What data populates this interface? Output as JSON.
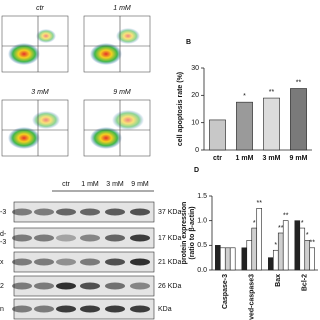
{
  "flow_cytometry": {
    "labels": [
      "ctr",
      "1 mM",
      "3 mM",
      "9 mM"
    ]
  },
  "western_blot": {
    "lanes": [
      "ctr",
      "1 mM",
      "3 mM",
      "9 mM"
    ],
    "rows": [
      {
        "label": [
          "-3"
        ],
        "size": "37 KDa"
      },
      {
        "label": [
          "d-",
          "-3"
        ],
        "size": "17 KDa"
      },
      {
        "label": [
          "x"
        ],
        "size": "21 KDa"
      },
      {
        "label": [
          "2"
        ],
        "size": "26 KDa"
      },
      {
        "label": [
          "n"
        ],
        "size": "KDa"
      }
    ]
  },
  "chart_data": [
    {
      "type": "bar",
      "panel": "B",
      "ylabel": "cell apoptosis rate (%)",
      "categories": [
        "ctr",
        "1 mM",
        "3 mM",
        "9 mM"
      ],
      "values": [
        11,
        17.5,
        19,
        22.5
      ],
      "colors": [
        "#c8c8c8",
        "#9a9a9a",
        "#dcdcdc",
        "#7a7a7a"
      ],
      "annotations": [
        null,
        "*",
        "**",
        "**"
      ],
      "ylim": [
        0,
        30
      ],
      "yticks": [
        0,
        10,
        20,
        30
      ]
    },
    {
      "type": "grouped_bar",
      "panel": "D",
      "ylabel": [
        "protein expression",
        "(ratio to β-actin)"
      ],
      "categories": [
        "Caspase-3",
        "Cleaved-caspase3",
        "Bax",
        "Bcl-2"
      ],
      "series": [
        {
          "color": "#222222",
          "values": [
            0.5,
            0.45,
            0.25,
            1.0
          ],
          "annotations": [
            null,
            null,
            null,
            null
          ]
        },
        {
          "color": "#ffffff",
          "values": [
            0.45,
            0.6,
            0.4,
            0.85
          ],
          "annotations": [
            null,
            null,
            "*",
            "*"
          ]
        },
        {
          "color": "#cfcfcf",
          "values": [
            0.45,
            0.85,
            0.75,
            0.6
          ],
          "annotations": [
            null,
            "*",
            "**",
            "*"
          ]
        },
        {
          "color": "#ffffff",
          "values": [
            0.45,
            1.25,
            1.0,
            0.45
          ],
          "annotations": [
            null,
            "**",
            "**",
            "**"
          ]
        }
      ],
      "ylim": [
        0,
        1.5
      ],
      "yticks": [
        {
          "value": 0,
          "label": "0.0"
        },
        {
          "value": 0.5,
          "label": "0.5"
        },
        {
          "value": 1,
          "label": "1.0"
        },
        1.5
      ]
    }
  ]
}
